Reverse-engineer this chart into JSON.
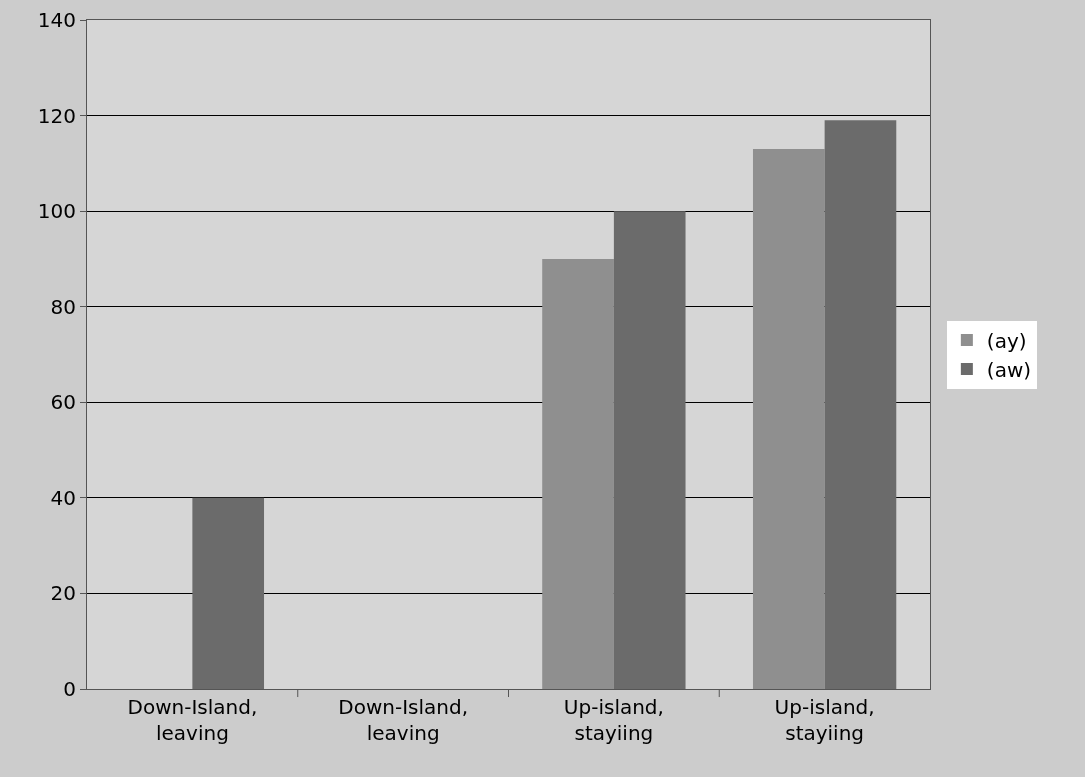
{
  "chart_data": {
    "type": "bar",
    "categories": [
      "Down-Island,\nleaving",
      "Down-Island,\nleaving",
      "Up-island,\nstayiing",
      "Up-island,\nstayiing"
    ],
    "series": [
      {
        "name": "(ay)",
        "color": "#8f8f8f",
        "values": [
          0,
          0,
          90,
          113
        ]
      },
      {
        "name": "(aw)",
        "color": "#6b6b6b",
        "values": [
          40,
          0,
          100,
          119
        ]
      }
    ],
    "ylim": [
      0,
      140
    ],
    "yticks": [
      0,
      20,
      40,
      60,
      80,
      100,
      120,
      140
    ],
    "grid": "y",
    "legend": "right"
  }
}
